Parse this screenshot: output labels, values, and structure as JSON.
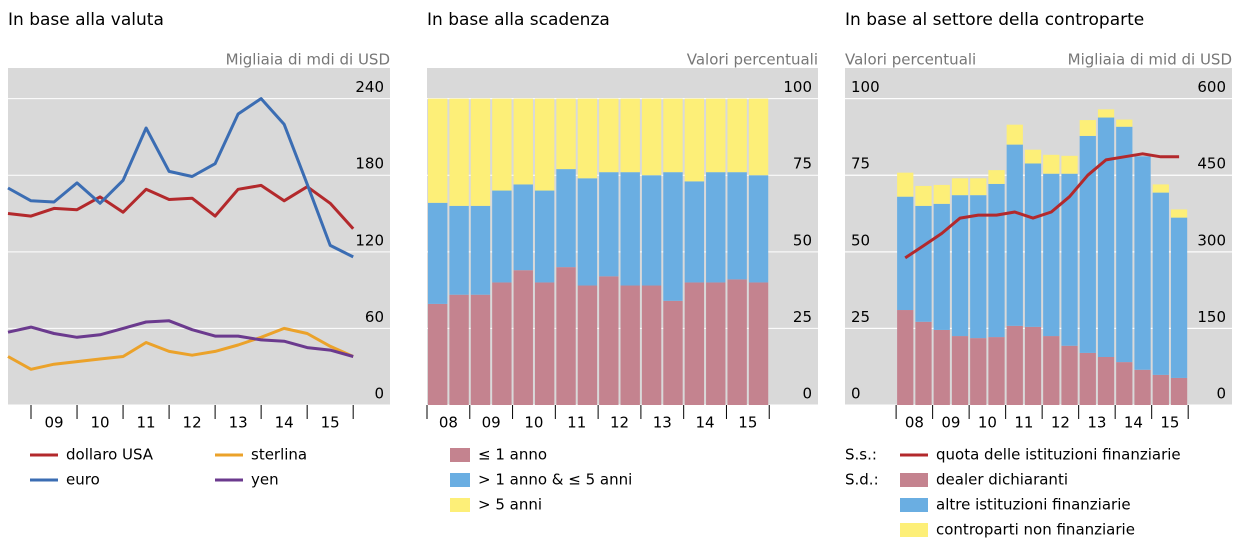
{
  "chart_data": [
    {
      "type": "line",
      "title": "In base alla valuta",
      "ylabel": "Migliaia di mdi di USD",
      "yaxis_position": "right",
      "x": [
        2008.5,
        2009,
        2009.5,
        2010,
        2010.5,
        2011,
        2011.5,
        2012,
        2012.5,
        2013,
        2013.5,
        2014,
        2014.5,
        2015,
        2015.5,
        2016
      ],
      "xlim": [
        2008.5,
        2016.8
      ],
      "xticks": [
        {
          "value": 2009.5,
          "label": "09"
        },
        {
          "value": 2010.5,
          "label": "10"
        },
        {
          "value": 2011.5,
          "label": "11"
        },
        {
          "value": 2012.5,
          "label": "12"
        },
        {
          "value": 2013.5,
          "label": "13"
        },
        {
          "value": 2014.5,
          "label": "14"
        },
        {
          "value": 2015.5,
          "label": "15"
        }
      ],
      "ylim": [
        0,
        264
      ],
      "yticks": [
        0,
        60,
        120,
        180,
        240
      ],
      "grid": true,
      "legend_columns": 2,
      "series": [
        {
          "name": "dollaro USA",
          "color": "#b3292c",
          "values": [
            150,
            148,
            154,
            153,
            163,
            151,
            169,
            161,
            162,
            148,
            169,
            172,
            160,
            171,
            158,
            138
          ]
        },
        {
          "name": "sterlina",
          "color": "#eba22a",
          "values": [
            38,
            28,
            32,
            34,
            36,
            38,
            49,
            42,
            39,
            42,
            47,
            53,
            60,
            56,
            46,
            38
          ]
        },
        {
          "name": "euro",
          "color": "#3b6db3",
          "values": [
            170,
            160,
            159,
            174,
            158,
            176,
            217,
            183,
            179,
            189,
            228,
            240,
            220,
            173,
            125,
            116
          ]
        },
        {
          "name": "yen",
          "color": "#6b3a8e",
          "values": [
            57,
            61,
            56,
            53,
            55,
            60,
            65,
            66,
            59,
            54,
            54,
            51,
            50,
            45,
            43,
            38
          ]
        }
      ]
    },
    {
      "type": "bar",
      "stacked": true,
      "title": "In base alla scadenza",
      "ylabel": "Valori percentuali",
      "yaxis_position": "right",
      "x": [
        2008.25,
        2008.75,
        2009.25,
        2009.75,
        2010.25,
        2010.75,
        2011.25,
        2011.75,
        2012.25,
        2012.75,
        2013.25,
        2013.75,
        2014.25,
        2014.75,
        2015.25,
        2015.75
      ],
      "xlim": [
        2008,
        2017.14
      ],
      "xticks": [
        {
          "value": 2008.5,
          "label": "08"
        },
        {
          "value": 2009.5,
          "label": "09"
        },
        {
          "value": 2010.5,
          "label": "10"
        },
        {
          "value": 2011.5,
          "label": "11"
        },
        {
          "value": 2012.5,
          "label": "12"
        },
        {
          "value": 2013.5,
          "label": "13"
        },
        {
          "value": 2014.5,
          "label": "14"
        },
        {
          "value": 2015.5,
          "label": "15"
        }
      ],
      "ylim": [
        0,
        110
      ],
      "yticks": [
        0,
        25,
        50,
        75,
        100
      ],
      "grid": true,
      "legend_columns": 1,
      "series": [
        {
          "name": "≤ 1 anno",
          "color": "#c4838f",
          "values": [
            33,
            36,
            36,
            40,
            44,
            40,
            45,
            39,
            42,
            39,
            39,
            34,
            40,
            40,
            41,
            40
          ]
        },
        {
          "name": "> 1 anno & ≤ 5 anni",
          "color": "#6aaee2",
          "values": [
            33,
            29,
            29,
            30,
            28,
            30,
            32,
            35,
            34,
            37,
            36,
            42,
            33,
            36,
            35,
            35
          ]
        },
        {
          "name": "> 5 anni",
          "color": "#fdef78",
          "values": [
            34,
            35,
            35,
            30,
            28,
            30,
            23,
            26,
            24,
            24,
            25,
            24,
            27,
            24,
            24,
            25
          ]
        }
      ]
    },
    {
      "type": "bar",
      "stacked": true,
      "title": "In base al settore della controparte",
      "ylabel": "Valori percentuali",
      "y2label": "Migliaia di mid di USD",
      "yaxis_position": "left",
      "x": [
        2008.25,
        2008.75,
        2009.25,
        2009.75,
        2010.25,
        2010.75,
        2011.25,
        2011.75,
        2012.25,
        2012.75,
        2013.25,
        2013.75,
        2014.25,
        2014.75,
        2015.25,
        2015.75
      ],
      "xlim": [
        2006.6,
        2017.2
      ],
      "xticks": [
        {
          "value": 2008.5,
          "label": "08"
        },
        {
          "value": 2009.5,
          "label": "09"
        },
        {
          "value": 2010.5,
          "label": "10"
        },
        {
          "value": 2011.5,
          "label": "11"
        },
        {
          "value": 2012.5,
          "label": "12"
        },
        {
          "value": 2013.5,
          "label": "13"
        },
        {
          "value": 2014.5,
          "label": "14"
        },
        {
          "value": 2015.5,
          "label": "15"
        }
      ],
      "ylim": [
        0,
        110
      ],
      "yticks": [
        0,
        25,
        50,
        75,
        100
      ],
      "y2lim": [
        0,
        660
      ],
      "y2ticks": [
        0,
        150,
        300,
        450,
        600
      ],
      "grid": true,
      "legend_columns": 1,
      "series": [
        {
          "name": "quota delle istituzioni finanziarie",
          "legend_prefix": "S.s.:",
          "type": "line",
          "color": "#b3292c",
          "values": [
            48,
            52,
            56,
            61,
            62,
            62,
            63,
            61,
            63,
            68,
            75,
            80,
            81,
            82,
            81,
            81
          ]
        },
        {
          "name": "dealer dichiaranti",
          "legend_prefix": "S.d.:",
          "axis": "y2",
          "color": "#c4838f",
          "values": [
            186,
            163,
            147,
            135,
            131,
            133,
            155,
            153,
            135,
            116,
            102,
            94,
            84,
            69,
            59,
            53
          ]
        },
        {
          "name": "altre istituzioni finanziarie",
          "axis": "y2",
          "color": "#6aaee2",
          "values": [
            222,
            227,
            247,
            276,
            280,
            300,
            355,
            320,
            318,
            337,
            425,
            469,
            461,
            418,
            357,
            314
          ]
        },
        {
          "name": "controparti non finanziarie",
          "axis": "y2",
          "color": "#fdef78",
          "values": [
            47,
            39,
            37,
            33,
            33,
            27,
            39,
            27,
            37,
            35,
            31,
            16,
            14,
            0,
            16,
            16
          ]
        }
      ]
    }
  ]
}
